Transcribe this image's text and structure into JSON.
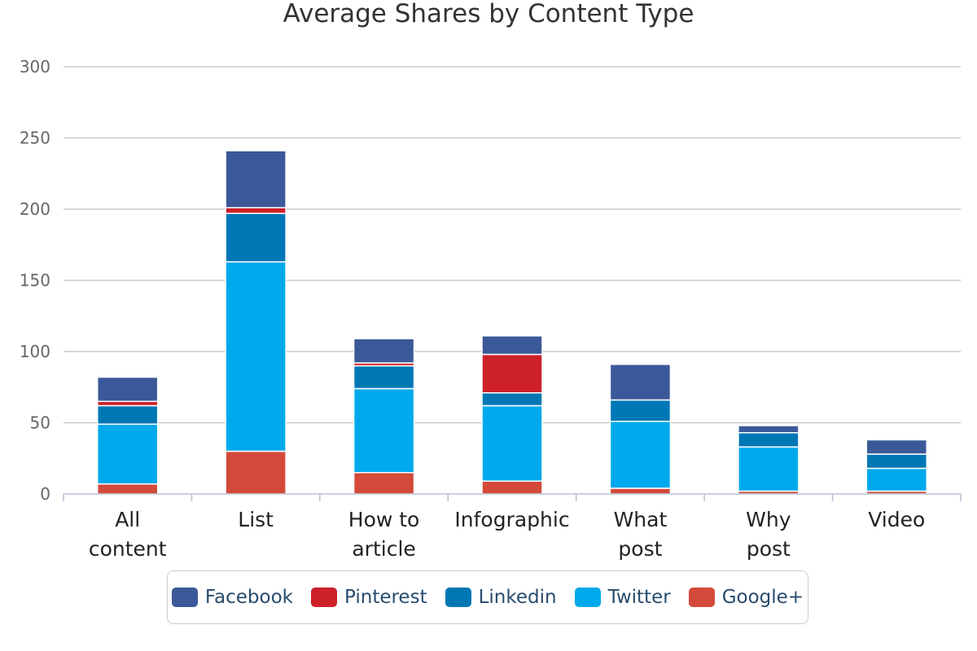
{
  "chart_data": {
    "type": "bar",
    "stacked": true,
    "title": "Average Shares by Content Type",
    "xlabel": "",
    "ylabel": "",
    "ylim": [
      0,
      300
    ],
    "yticks": [
      0,
      50,
      100,
      150,
      200,
      250,
      300
    ],
    "categories": [
      [
        "All",
        "content"
      ],
      [
        "List"
      ],
      [
        "How to",
        "article"
      ],
      [
        "Infographic"
      ],
      [
        "What",
        "post"
      ],
      [
        "Why",
        "post"
      ],
      [
        "Video"
      ]
    ],
    "series": [
      {
        "name": "Google+",
        "color": "#d34a3a",
        "values": [
          7,
          30,
          15,
          9,
          4,
          2,
          2
        ]
      },
      {
        "name": "Twitter",
        "color": "#00a9ec",
        "values": [
          42,
          133,
          59,
          53,
          47,
          31,
          16
        ]
      },
      {
        "name": "Linkedin",
        "color": "#0077b5",
        "values": [
          13,
          34,
          16,
          9,
          15,
          10,
          10
        ]
      },
      {
        "name": "Pinterest",
        "color": "#cd2029",
        "values": [
          3,
          4,
          2,
          27,
          0,
          0,
          0
        ]
      },
      {
        "name": "Facebook",
        "color": "#3b5998",
        "values": [
          17,
          40,
          17,
          13,
          25,
          5,
          10
        ]
      }
    ],
    "legend": {
      "position": "bottom",
      "order": [
        "Facebook",
        "Pinterest",
        "Linkedin",
        "Twitter",
        "Google+"
      ]
    }
  }
}
